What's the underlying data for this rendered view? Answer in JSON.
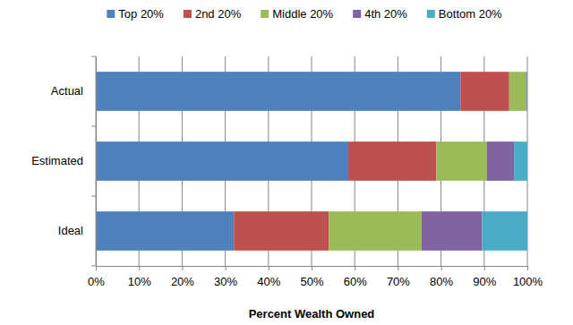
{
  "chart_data": {
    "type": "bar",
    "orientation": "horizontal",
    "stacked": true,
    "categories": [
      "Actual",
      "Estimated",
      "Ideal"
    ],
    "series": [
      {
        "name": "Top 20%",
        "color": "#4f81bd",
        "values": [
          84.5,
          58.5,
          32
        ]
      },
      {
        "name": "2nd 20%",
        "color": "#c0504d",
        "values": [
          11.3,
          20.4,
          22
        ]
      },
      {
        "name": "Middle 20%",
        "color": "#9bbb59",
        "values": [
          3.9,
          11.7,
          21.5
        ]
      },
      {
        "name": "4th 20%",
        "color": "#8064a2",
        "values": [
          0.2,
          6.3,
          14
        ]
      },
      {
        "name": "Bottom 20%",
        "color": "#4bacc6",
        "values": [
          0.1,
          3.1,
          10.5
        ]
      }
    ],
    "x_label": "Percent Wealth Owned",
    "xlim": [
      0,
      100
    ],
    "xticks": [
      {
        "value": 0,
        "label": "0%"
      },
      {
        "value": 10,
        "label": "10%"
      },
      {
        "value": 20,
        "label": "20%"
      },
      {
        "value": 30,
        "label": "30%"
      },
      {
        "value": 40,
        "label": "40%"
      },
      {
        "value": 50,
        "label": "50%"
      },
      {
        "value": 60,
        "label": "60%"
      },
      {
        "value": 70,
        "label": "70%"
      },
      {
        "value": 80,
        "label": "80%"
      },
      {
        "value": 90,
        "label": "90%"
      },
      {
        "value": 100,
        "label": "100%"
      }
    ],
    "grid": true,
    "legend": "top"
  }
}
